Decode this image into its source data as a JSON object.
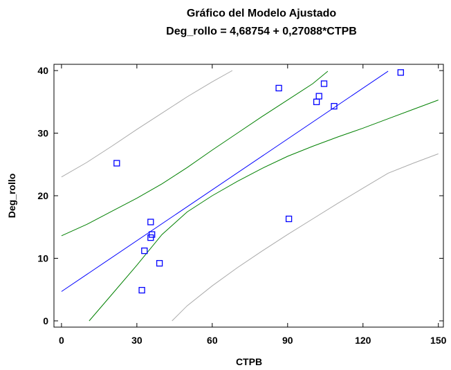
{
  "chart_data": {
    "type": "scatter",
    "title": "Gráfico del Modelo Ajustado",
    "subtitle": "Deg_rollo = 4,68754 + 0,27088*CTPB",
    "xlabel": "CTPB",
    "ylabel": "Deg_rollo",
    "xlim": [
      -3,
      152
    ],
    "ylim": [
      -1,
      41
    ],
    "x_ticks": [
      0,
      30,
      60,
      90,
      120,
      150
    ],
    "x_tick_labels": [
      "0",
      "30",
      "60",
      "90",
      "120",
      "150"
    ],
    "y_ticks": [
      0,
      10,
      20,
      30,
      40
    ],
    "y_tick_labels": [
      "0",
      "10",
      "20",
      "30",
      "40"
    ],
    "grid": false,
    "legend": "none",
    "colors": {
      "points": "#0000ff",
      "fit": "#0000ff",
      "confidence": "#008000",
      "prediction": "#aaaaaa",
      "axes": "#000000"
    },
    "points": [
      {
        "x": 22,
        "y": 25.2
      },
      {
        "x": 32,
        "y": 4.9
      },
      {
        "x": 33,
        "y": 11.2
      },
      {
        "x": 35.5,
        "y": 15.8
      },
      {
        "x": 35.5,
        "y": 13.3
      },
      {
        "x": 36,
        "y": 13.8
      },
      {
        "x": 39,
        "y": 9.2
      },
      {
        "x": 86.5,
        "y": 37.2
      },
      {
        "x": 90.5,
        "y": 16.3
      },
      {
        "x": 101.5,
        "y": 35
      },
      {
        "x": 102.5,
        "y": 35.9
      },
      {
        "x": 104.5,
        "y": 37.9
      },
      {
        "x": 108.5,
        "y": 34.3
      },
      {
        "x": 135,
        "y": 39.7
      }
    ],
    "fit_line": {
      "intercept": 4.68754,
      "slope": 0.27088,
      "x_range": [
        0,
        130
      ]
    },
    "confidence_upper": {
      "x": [
        0,
        10,
        20,
        30,
        40,
        50,
        60,
        70,
        80,
        90,
        100,
        106
      ],
      "y": [
        13.6,
        15.4,
        17.5,
        19.6,
        21.9,
        24.5,
        27.3,
        30.0,
        32.7,
        35.3,
        37.9,
        39.9
      ]
    },
    "confidence_lower": {
      "x": [
        11,
        20,
        30,
        40,
        50,
        60,
        70,
        80,
        90,
        100,
        110,
        120,
        130,
        140,
        150
      ],
      "y": [
        0,
        4.2,
        8.9,
        13.8,
        17.4,
        20.0,
        22.3,
        24.4,
        26.3,
        27.9,
        29.4,
        30.8,
        32.3,
        33.8,
        35.3
      ]
    },
    "prediction_upper": {
      "x": [
        0,
        10,
        20,
        30,
        40,
        50,
        60,
        68
      ],
      "y": [
        23,
        25.3,
        27.9,
        30.6,
        33.2,
        35.8,
        38.2,
        40
      ]
    },
    "prediction_lower": {
      "x": [
        44,
        50,
        60,
        70,
        80,
        90,
        100,
        110,
        120,
        130,
        140,
        150
      ],
      "y": [
        0,
        2.4,
        5.6,
        8.5,
        11.2,
        13.8,
        16.3,
        18.8,
        21.2,
        23.6,
        25.2,
        26.7
      ]
    }
  }
}
